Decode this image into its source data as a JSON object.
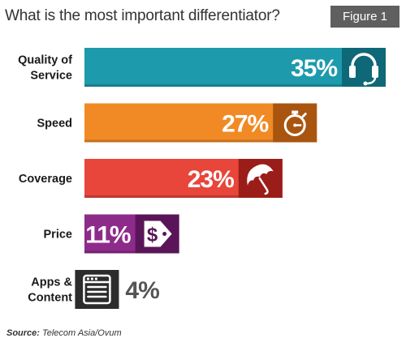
{
  "figure_label": "Figure 1",
  "source_label": "Source:",
  "source_text": "Telecom Asia/Ovum",
  "chart_data": {
    "type": "bar",
    "orientation": "horizontal",
    "title": "What is the most important differentiator?",
    "categories": [
      [
        "Quality of",
        "Service"
      ],
      [
        "Speed"
      ],
      [
        "Coverage"
      ],
      [
        "Price"
      ],
      [
        "Apps &",
        "Content"
      ]
    ],
    "values": [
      35,
      27,
      23,
      11,
      4
    ],
    "value_labels": [
      "35%",
      "27%",
      "23%",
      "11%",
      "4%"
    ],
    "unit": "%",
    "xlim": [
      0,
      37
    ],
    "grid": false,
    "legend": "none",
    "colors": {
      "bars": [
        "#1e9aad",
        "#f18a24",
        "#e8453b",
        "#8d2b8b",
        "#3f3f3f"
      ],
      "icon_boxes": [
        "#0e6877",
        "#a95510",
        "#9b1d19",
        "#5a1558",
        "#2c2c2c"
      ]
    },
    "icons": [
      "headset-icon",
      "stopwatch-icon",
      "umbrella-icon",
      "price-tag-icon",
      "app-window-icon"
    ]
  }
}
